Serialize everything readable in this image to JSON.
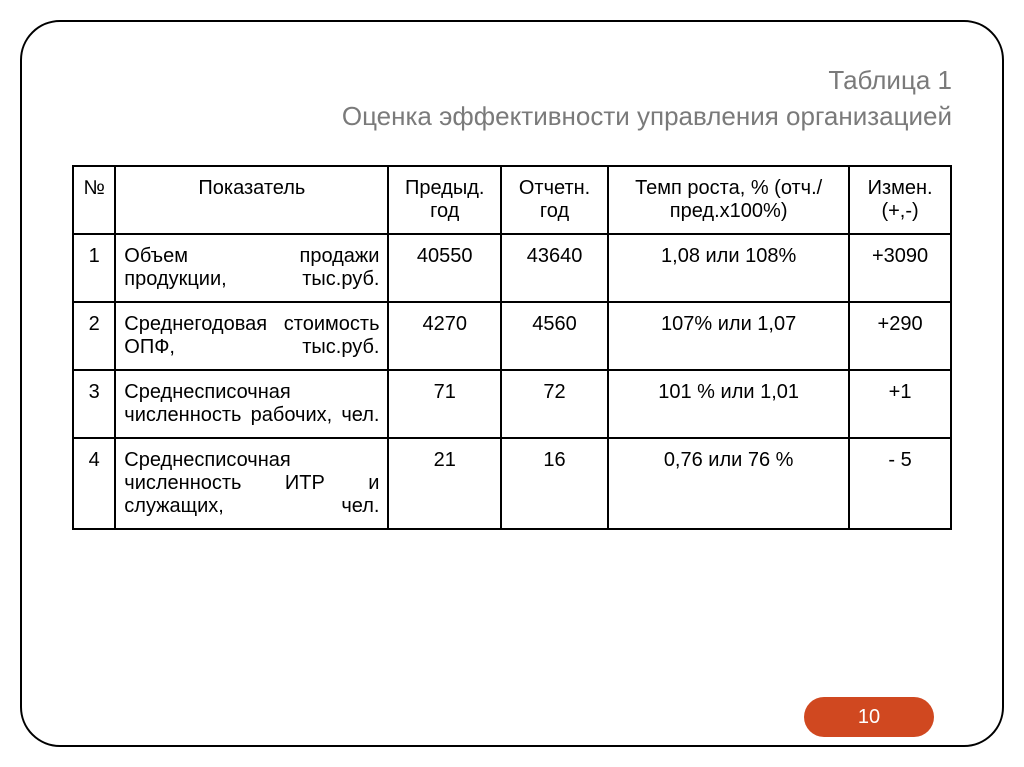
{
  "title": {
    "line1": "Таблица 1",
    "line2": "Оценка эффективности управления организацией"
  },
  "table": {
    "headers": {
      "num": "№",
      "indicator": "Показатель",
      "prev": "Предыд. год",
      "report": "Отчетн. год",
      "growth": "Темп роста, % (отч./пред.х100%)",
      "change": "Измен. (+,-)"
    },
    "rows": [
      {
        "num": "1",
        "indicator": "Объем продажи продукции, тыс.руб.",
        "prev": "40550",
        "report": "43640",
        "growth": "1,08 или 108%",
        "change": "+3090"
      },
      {
        "num": "2",
        "indicator": "Среднегодовая стоимость ОПФ, тыс.руб.",
        "prev": "4270",
        "report": "4560",
        "growth": "107% или 1,07",
        "change": "+290"
      },
      {
        "num": "3",
        "indicator": "Среднесписочная численность рабочих, чел.",
        "prev": "71",
        "report": "72",
        "growth": "101 % или 1,01",
        "change": "+1"
      },
      {
        "num": "4",
        "indicator": "Среднесписочная численность ИТР и служащих, чел.",
        "prev": "21",
        "report": "16",
        "growth": "0,76 или 76 %",
        "change": "- 5"
      }
    ]
  },
  "page_number": "10",
  "style": {
    "title_color": "#7a7a7a",
    "title_fontsize": 26,
    "table_fontsize": 20,
    "border_color": "#000000",
    "badge_bg": "#d04820",
    "badge_fg": "#ffffff",
    "frame_radius": 40
  }
}
